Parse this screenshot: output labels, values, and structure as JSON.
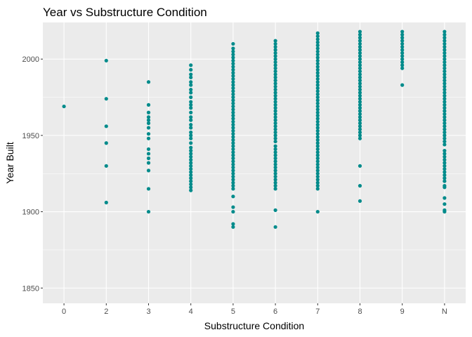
{
  "chart_data": {
    "type": "scatter",
    "title": "Year vs Substructure Condition",
    "xlabel": "Substructure Condition",
    "ylabel": "Year Built",
    "categories": [
      "0",
      "2",
      "3",
      "4",
      "5",
      "6",
      "7",
      "8",
      "9",
      "N"
    ],
    "ylim": [
      1840,
      2024
    ],
    "yticks": [
      1850,
      1900,
      1950,
      2000
    ],
    "grid": true,
    "legend": "none",
    "point_color": "#008B8B",
    "panel_color": "#EBEBEB",
    "series": [
      {
        "points": {
          "0": [
            1969
          ],
          "2": [
            1906,
            1930,
            1945,
            1956,
            1974,
            1999
          ],
          "3": [
            1900,
            1915,
            1927,
            1932,
            1935,
            1938,
            1941,
            1948,
            1951,
            1955,
            1958,
            1960,
            1962,
            1965,
            1970,
            1985
          ],
          "4": [
            1914,
            1916,
            1918,
            1920,
            1922,
            1924,
            1926,
            1928,
            1930,
            1932,
            1934,
            1936,
            1938,
            1940,
            1942,
            1945,
            1948,
            1950,
            1952,
            1955,
            1957,
            1960,
            1962,
            1965,
            1968,
            1970,
            1972,
            1975,
            1978,
            1980,
            1983,
            1985,
            1988,
            1990,
            1993,
            1996
          ],
          "5": [
            1890,
            1892,
            1900,
            1903,
            1910,
            1915,
            1917,
            1919,
            1921,
            1923,
            1925,
            1927,
            1929,
            1931,
            1933,
            1935,
            1937,
            1939,
            1941,
            1943,
            1945,
            1947,
            1949,
            1951,
            1953,
            1955,
            1957,
            1959,
            1961,
            1963,
            1965,
            1967,
            1969,
            1971,
            1973,
            1975,
            1977,
            1979,
            1981,
            1983,
            1985,
            1987,
            1989,
            1991,
            1993,
            1995,
            1997,
            1999,
            2001,
            2003,
            2005,
            2007,
            2010
          ],
          "6": [
            1890,
            1901,
            1915,
            1917,
            1919,
            1921,
            1923,
            1925,
            1927,
            1929,
            1931,
            1933,
            1935,
            1937,
            1939,
            1941,
            1943,
            1946,
            1948,
            1950,
            1952,
            1954,
            1956,
            1958,
            1960,
            1962,
            1964,
            1966,
            1968,
            1970,
            1972,
            1974,
            1976,
            1978,
            1980,
            1982,
            1984,
            1986,
            1988,
            1990,
            1992,
            1994,
            1996,
            1998,
            2000,
            2002,
            2004,
            2006,
            2008,
            2010,
            2012
          ],
          "7": [
            1900,
            1915,
            1917,
            1919,
            1921,
            1923,
            1925,
            1927,
            1929,
            1931,
            1933,
            1935,
            1937,
            1939,
            1941,
            1943,
            1945,
            1947,
            1949,
            1951,
            1953,
            1955,
            1957,
            1959,
            1961,
            1963,
            1965,
            1967,
            1969,
            1971,
            1973,
            1975,
            1977,
            1979,
            1981,
            1983,
            1985,
            1987,
            1989,
            1991,
            1993,
            1995,
            1997,
            1999,
            2001,
            2003,
            2005,
            2007,
            2009,
            2011,
            2013,
            2015,
            2017
          ],
          "8": [
            1907,
            1917,
            1930,
            1948,
            1950,
            1952,
            1954,
            1956,
            1958,
            1960,
            1962,
            1964,
            1966,
            1968,
            1970,
            1972,
            1974,
            1976,
            1978,
            1980,
            1982,
            1984,
            1986,
            1988,
            1990,
            1992,
            1994,
            1996,
            1998,
            2000,
            2002,
            2004,
            2006,
            2008,
            2010,
            2012,
            2014,
            2016,
            2018
          ],
          "9": [
            1983,
            1994,
            1996,
            1998,
            2000,
            2002,
            2004,
            2006,
            2008,
            2010,
            2012,
            2014,
            2016,
            2018
          ],
          "N": [
            1900,
            1901,
            1905,
            1909,
            1916,
            1917,
            1920,
            1922,
            1924,
            1926,
            1928,
            1930,
            1932,
            1934,
            1936,
            1938,
            1940,
            1944,
            1946,
            1948,
            1950,
            1952,
            1954,
            1956,
            1958,
            1960,
            1962,
            1964,
            1966,
            1968,
            1970,
            1972,
            1974,
            1976,
            1978,
            1980,
            1982,
            1984,
            1986,
            1988,
            1990,
            1992,
            1994,
            1996,
            1998,
            2000,
            2002,
            2004,
            2006,
            2008,
            2010,
            2012,
            2014,
            2016,
            2018
          ]
        }
      }
    ]
  }
}
